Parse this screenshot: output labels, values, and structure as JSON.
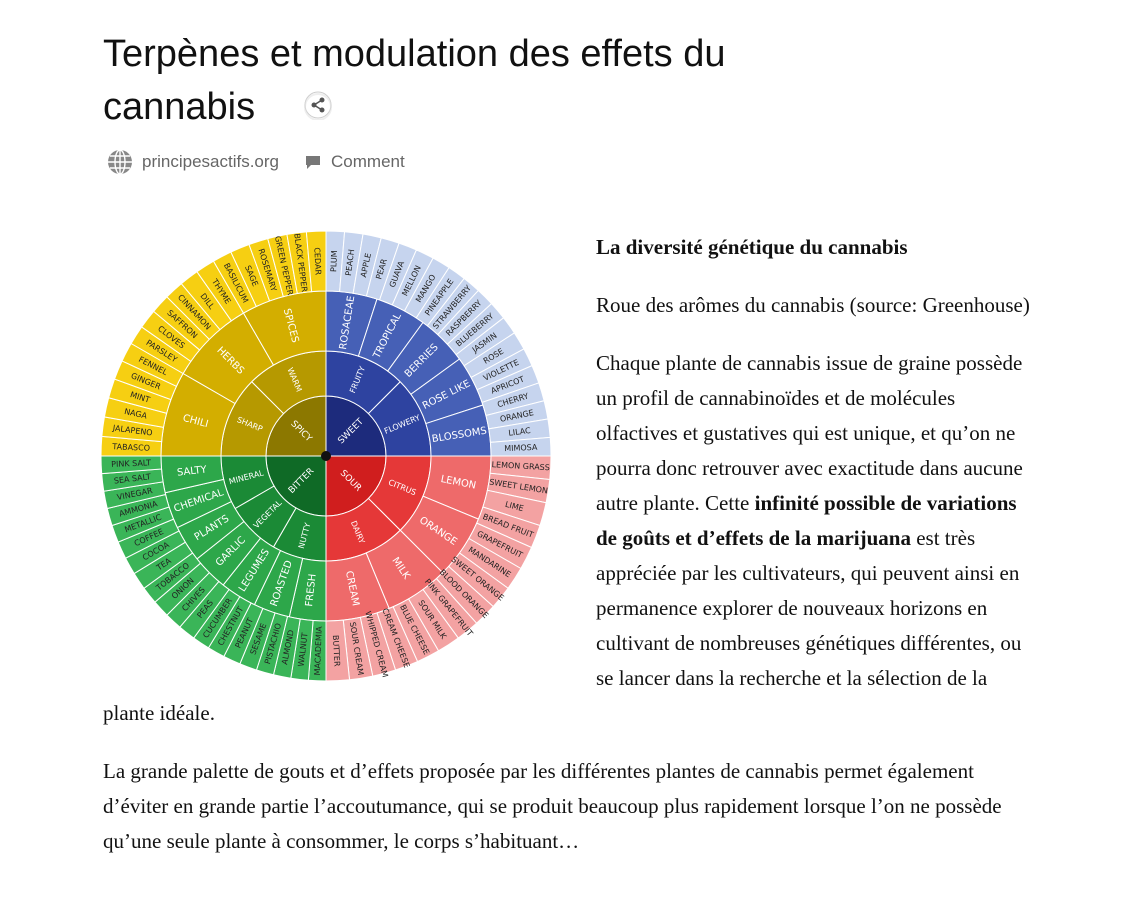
{
  "header": {
    "title": "Terpènes et modulation des effets du cannabis",
    "site": "principesactifs.org",
    "comment": "Comment"
  },
  "wheel": {
    "quadrants": [
      {
        "name": "SWEET",
        "groups": [
          "FRUITY",
          "FLOWERY"
        ],
        "families": [
          "ROSACEAE",
          "TROPICAL",
          "BERRIES",
          "ROSE LIKE",
          "BLOSSOMS"
        ],
        "aromas": [
          "PLUM",
          "PEACH",
          "APPLE",
          "PEAR",
          "GUAVA",
          "MELLON",
          "MANGO",
          "PINEAPPLE",
          "STRAWBERRY",
          "RASPBERRY",
          "BLUEBERRY",
          "JASMIN",
          "ROSE",
          "VIOLETTE",
          "APRICOT",
          "CHERRY",
          "ORANGE",
          "LILAC",
          "MIMOSA"
        ]
      },
      {
        "name": "SOUR",
        "groups": [
          "CITRUS",
          "DAIRY"
        ],
        "families": [
          "LEMON",
          "ORANGE",
          "MILK",
          "CREAM"
        ],
        "aromas": [
          "LEMON GRASS",
          "SWEET LEMON",
          "LIME",
          "BREAD FRUIT",
          "GRAPEFRUIT",
          "MANDARINE",
          "SWEET ORANGE",
          "BLOOD ORANGE",
          "PINK GRAPEFRUIT",
          "SOUR MILK",
          "BLUE CHEESE",
          "CREAM CHEESE",
          "WHIPPED CREAM",
          "SOUR CREAM",
          "BUTTER"
        ]
      },
      {
        "name": "BITTER",
        "groups": [
          "NUTTY",
          "VEGETAL",
          "MINERAL"
        ],
        "families": [
          "FRESH",
          "ROASTED",
          "LEGUMES",
          "GARLIC",
          "PLANTS",
          "CHEMICAL",
          "SALTY"
        ],
        "aromas": [
          "MACADEMIA",
          "WALNUT",
          "ALMOND",
          "PISTACHIO",
          "SESAME",
          "PEANUT",
          "CHESTNUT",
          "CUCUMBER",
          "PEAS",
          "CHIVES",
          "ONION",
          "TOBACCO",
          "TEA",
          "COCOA",
          "COFFEE",
          "METALLIC",
          "AMMONIA",
          "VINEGAR",
          "SEA SALT",
          "PINK SALT"
        ]
      },
      {
        "name": "SPICY",
        "groups": [
          "SHARP",
          "WARM"
        ],
        "families": [
          "CHILI",
          "HERBS",
          "SPICES"
        ],
        "aromas": [
          "TABASCO",
          "JALAPENO",
          "NAGA",
          "MINT",
          "GINGER",
          "FENNEL",
          "PARSLEY",
          "CLOVES",
          "SAFFRON",
          "CINNAMON",
          "DILL",
          "THYME",
          "BASILICUM",
          "SAGE",
          "ROSEMARY",
          "GREEN PEPPER",
          "BLACK PEPPER",
          "CEDAR"
        ]
      }
    ]
  },
  "content": {
    "heading": "La diversité génétique du cannabis",
    "caption": "Roue des arômes du cannabis (source: Greenhouse)",
    "paragraph1": {
      "before": "Chaque plante de cannabis issue de graine possède un profil de cannabinoïdes et de molécules olfactives et gustatives qui est unique, et qu’on ne pourra donc retrouver avec exactitude dans aucune autre plante. Cette ",
      "bold": "infinité possible de variations de goûts et d’effets de la marijuana",
      "after": " est très appréciée par les cultivateurs, qui peuvent ainsi en permanence explorer de nouveaux horizons en cultivant de nombreuses génétiques différentes, ou se lancer dans la recherche et la sélection de la plante idéale."
    },
    "paragraph2": "La grande palette de gouts et d’effets proposée par les différentes plantes de cannabis permet également d’éviter en grande partie l’accoutumance, qui se produit beaucoup plus rapidement lorsque l’on ne possède qu’une seule plante à consommer, le corps s’habituant…"
  }
}
